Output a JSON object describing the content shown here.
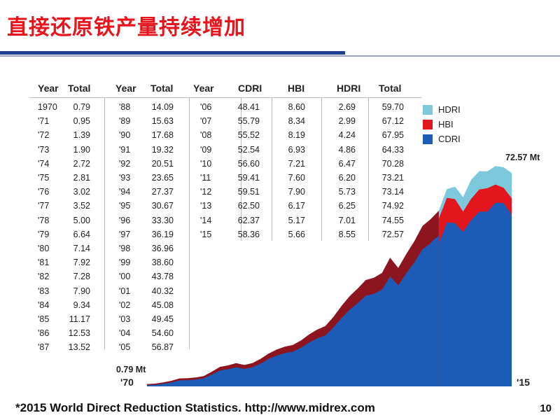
{
  "page": {
    "title": "直接还原铁产量持续增加",
    "footer": "*2015 World Direct Reduction Statistics. http://www.midrex.com",
    "page_number": "10"
  },
  "colors": {
    "hdri": "#7ec8dc",
    "hbi": "#e3161e",
    "cdri": "#1d5cb6",
    "hbi_dark": "#8c1520",
    "title": "#e8141b"
  },
  "table": {
    "headers": {
      "year": "Year",
      "total": "Total",
      "cdri": "CDRI",
      "hbi": "HBI",
      "hdri": "HDRI"
    },
    "col1": [
      [
        "1970",
        "0.79"
      ],
      [
        "'71",
        "0.95"
      ],
      [
        "'72",
        "1.39"
      ],
      [
        "'73",
        "1.90"
      ],
      [
        "'74",
        "2.72"
      ],
      [
        "'75",
        "2.81"
      ],
      [
        "'76",
        "3.02"
      ],
      [
        "'77",
        "3.52"
      ],
      [
        "'78",
        "5.00"
      ],
      [
        "'79",
        "6.64"
      ],
      [
        "'80",
        "7.14"
      ],
      [
        "'81",
        "7.92"
      ],
      [
        "'82",
        "7.28"
      ],
      [
        "'83",
        "7.90"
      ],
      [
        "'84",
        "9.34"
      ],
      [
        "'85",
        "11.17"
      ],
      [
        "'86",
        "12.53"
      ],
      [
        "'87",
        "13.52"
      ]
    ],
    "col2": [
      [
        "'88",
        "14.09"
      ],
      [
        "'89",
        "15.63"
      ],
      [
        "'90",
        "17.68"
      ],
      [
        "'91",
        "19.32"
      ],
      [
        "'92",
        "20.51"
      ],
      [
        "'93",
        "23.65"
      ],
      [
        "'94",
        "27.37"
      ],
      [
        "'95",
        "30.67"
      ],
      [
        "'96",
        "33.30"
      ],
      [
        "'97",
        "36.19"
      ],
      [
        "'98",
        "36.96"
      ],
      [
        "'99",
        "38.60"
      ],
      [
        "'00",
        "43.78"
      ],
      [
        "'01",
        "40.32"
      ],
      [
        "'02",
        "45.08"
      ],
      [
        "'03",
        "49.45"
      ],
      [
        "'04",
        "54.60"
      ],
      [
        "'05",
        "56.87"
      ]
    ],
    "col3": [
      [
        "'06",
        "48.41",
        "8.60",
        "2.69",
        "59.70"
      ],
      [
        "'07",
        "55.79",
        "8.34",
        "2.99",
        "67.12"
      ],
      [
        "'08",
        "55.52",
        "8.19",
        "4.24",
        "67.95"
      ],
      [
        "'09",
        "52.54",
        "6.93",
        "4.86",
        "64.33"
      ],
      [
        "'10",
        "56.60",
        "7.21",
        "6.47",
        "70.28"
      ],
      [
        "'11",
        "59.41",
        "7.60",
        "6.20",
        "73.21"
      ],
      [
        "'12",
        "59.51",
        "7.90",
        "5.73",
        "73.14"
      ],
      [
        "'13",
        "62.50",
        "6.17",
        "6.25",
        "74.92"
      ],
      [
        "'14",
        "62.37",
        "5.17",
        "7.01",
        "74.55"
      ],
      [
        "'15",
        "58.36",
        "5.66",
        "8.55",
        "72.57"
      ]
    ]
  },
  "chart_data": {
    "type": "area",
    "stacked": true,
    "x": [
      1970,
      1971,
      1972,
      1973,
      1974,
      1975,
      1976,
      1977,
      1978,
      1979,
      1980,
      1981,
      1982,
      1983,
      1984,
      1985,
      1986,
      1987,
      1988,
      1989,
      1990,
      1991,
      1992,
      1993,
      1994,
      1995,
      1996,
      1997,
      1998,
      1999,
      2000,
      2001,
      2002,
      2003,
      2004,
      2005,
      2006,
      2007,
      2008,
      2009,
      2010,
      2011,
      2012,
      2013,
      2014,
      2015
    ],
    "total": [
      0.79,
      0.95,
      1.39,
      1.9,
      2.72,
      2.81,
      3.02,
      3.52,
      5.0,
      6.64,
      7.14,
      7.92,
      7.28,
      7.9,
      9.34,
      11.17,
      12.53,
      13.52,
      14.09,
      15.63,
      17.68,
      19.32,
      20.51,
      23.65,
      27.37,
      30.67,
      33.3,
      36.19,
      36.96,
      38.6,
      43.78,
      40.32,
      45.08,
      49.45,
      54.6,
      56.87,
      59.7,
      67.12,
      67.95,
      64.33,
      70.28,
      73.21,
      73.14,
      74.92,
      74.55,
      72.57
    ],
    "series": [
      {
        "name": "CDRI",
        "x": [
          2006,
          2007,
          2008,
          2009,
          2010,
          2011,
          2012,
          2013,
          2014,
          2015
        ],
        "values": [
          48.41,
          55.79,
          55.52,
          52.54,
          56.6,
          59.41,
          59.51,
          62.5,
          62.37,
          58.36
        ]
      },
      {
        "name": "HBI",
        "x": [
          2006,
          2007,
          2008,
          2009,
          2010,
          2011,
          2012,
          2013,
          2014,
          2015
        ],
        "values": [
          8.6,
          8.34,
          8.19,
          6.93,
          7.21,
          7.6,
          7.9,
          6.17,
          5.17,
          5.66
        ]
      },
      {
        "name": "HDRI",
        "x": [
          2006,
          2007,
          2008,
          2009,
          2010,
          2011,
          2012,
          2013,
          2014,
          2015
        ],
        "values": [
          2.69,
          2.99,
          4.24,
          4.86,
          6.47,
          6.2,
          5.73,
          6.25,
          7.01,
          8.55
        ]
      }
    ],
    "legend": [
      "HDRI",
      "HBI",
      "CDRI"
    ],
    "legend_position": "top-right",
    "annotations": {
      "start_value": "0.79 Mt",
      "start_year": "'70",
      "end_value": "72.57 Mt",
      "end_year": "'15"
    },
    "ylim": [
      0,
      80
    ],
    "grid": false
  }
}
